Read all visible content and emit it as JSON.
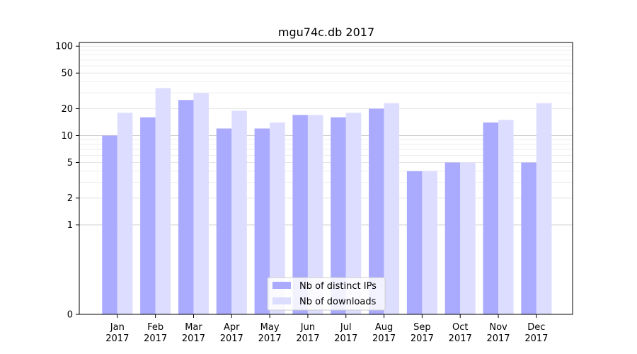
{
  "chart_data": {
    "type": "bar",
    "title": "mgu74c.db 2017",
    "xlabel": "",
    "ylabel": "",
    "yscale": "symlog",
    "ylim": [
      0,
      110
    ],
    "yticks": [
      0,
      1,
      2,
      5,
      10,
      20,
      50,
      100
    ],
    "ytick_labels": [
      "0",
      "1",
      "2",
      "5",
      "10",
      "20",
      "50",
      "100"
    ],
    "grid": true,
    "legend_position": "bottom-center",
    "categories": [
      {
        "month": "Jan",
        "year": "2017"
      },
      {
        "month": "Feb",
        "year": "2017"
      },
      {
        "month": "Mar",
        "year": "2017"
      },
      {
        "month": "Apr",
        "year": "2017"
      },
      {
        "month": "May",
        "year": "2017"
      },
      {
        "month": "Jun",
        "year": "2017"
      },
      {
        "month": "Jul",
        "year": "2017"
      },
      {
        "month": "Aug",
        "year": "2017"
      },
      {
        "month": "Sep",
        "year": "2017"
      },
      {
        "month": "Oct",
        "year": "2017"
      },
      {
        "month": "Nov",
        "year": "2017"
      },
      {
        "month": "Dec",
        "year": "2017"
      }
    ],
    "series": [
      {
        "name": "Nb of distinct IPs",
        "color": "#aaaaff",
        "values": [
          10,
          16,
          25,
          12,
          12,
          17,
          16,
          20,
          4,
          5,
          14,
          5
        ]
      },
      {
        "name": "Nb of downloads",
        "color": "#ddddff",
        "values": [
          18,
          34,
          30,
          19,
          14,
          17,
          18,
          23,
          4,
          5,
          15,
          23
        ]
      }
    ]
  }
}
